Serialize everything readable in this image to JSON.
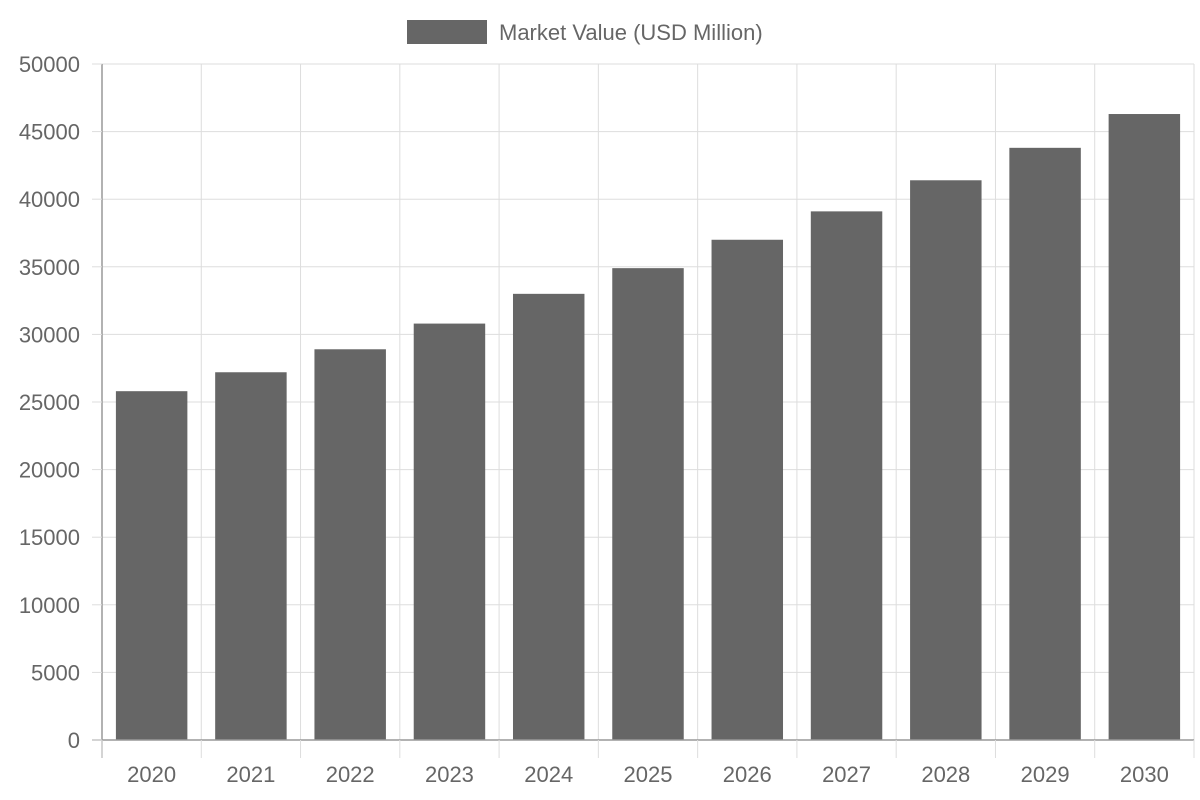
{
  "chart_data": {
    "type": "bar",
    "categories": [
      "2020",
      "2021",
      "2022",
      "2023",
      "2024",
      "2025",
      "2026",
      "2027",
      "2028",
      "2029",
      "2030"
    ],
    "series": [
      {
        "name": "Market Value (USD Million)",
        "values": [
          25800,
          27200,
          28900,
          30800,
          33000,
          34900,
          37000,
          39100,
          41400,
          43800,
          46300
        ],
        "color": "#666666"
      }
    ],
    "ylim": [
      0,
      50000
    ],
    "yticks": [
      0,
      5000,
      10000,
      15000,
      20000,
      25000,
      30000,
      35000,
      40000,
      45000,
      50000
    ],
    "grid": true,
    "legend_position": "top-center",
    "colors": {
      "bar": "#666666",
      "grid": "#dddddd",
      "axis": "#999999",
      "text": "#666666"
    }
  }
}
